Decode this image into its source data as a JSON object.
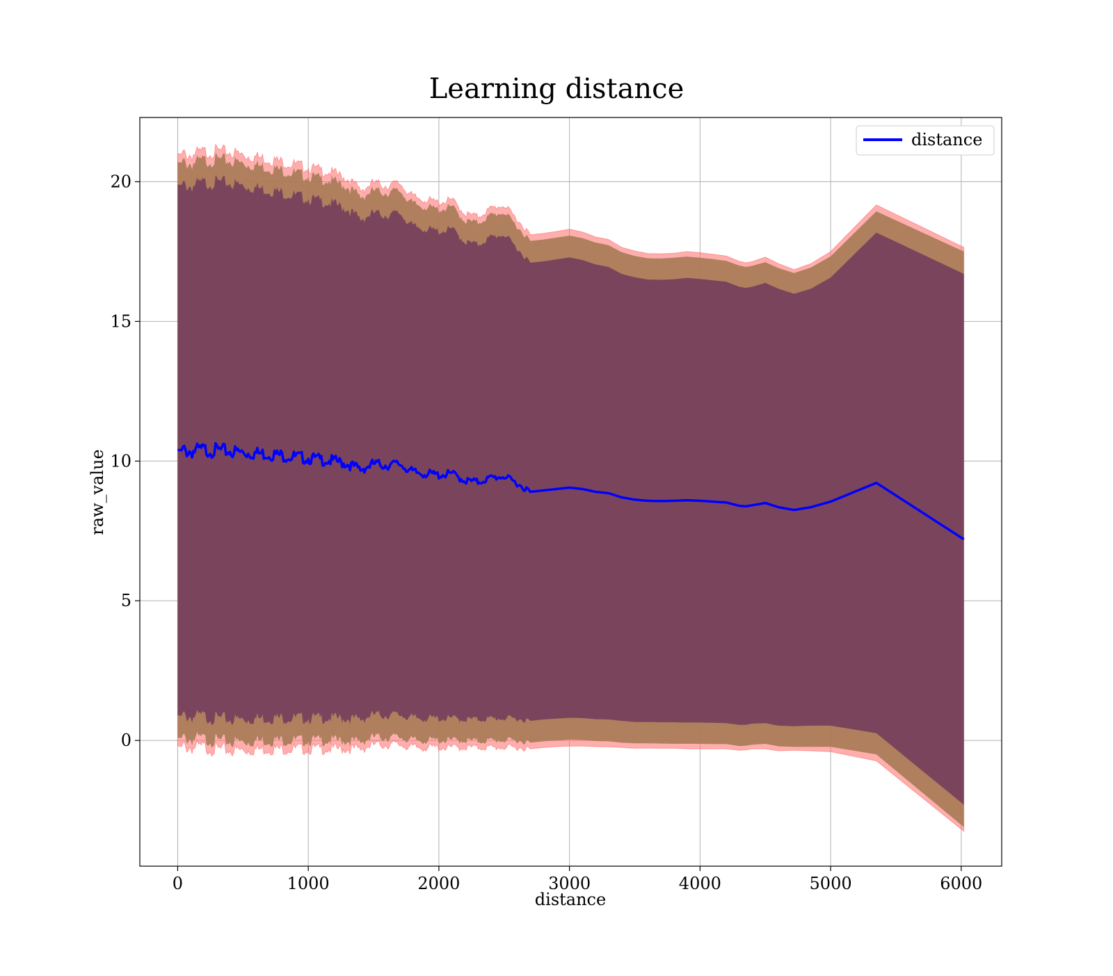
{
  "chart_data": {
    "type": "line",
    "title": "Learning distance",
    "xlabel": "distance",
    "ylabel": "raw_value",
    "xlim": [
      -290,
      6310
    ],
    "ylim": [
      -4.5,
      22.3
    ],
    "xticks": [
      0,
      1000,
      2000,
      3000,
      4000,
      5000,
      6000
    ],
    "yticks": [
      0,
      5,
      10,
      15,
      20
    ],
    "grid": true,
    "legend": {
      "position": "top-right",
      "entries": [
        {
          "label": "distance",
          "color": "#0000ff"
        }
      ]
    },
    "colors": {
      "line": "#0000ff",
      "band_outer": "#ff6b6b",
      "band_mid": "#a77a55",
      "band_inner": "#77425c",
      "grid": "#b0b0b0"
    },
    "series": [
      {
        "name": "distance",
        "x": [
          0,
          100,
          200,
          300,
          400,
          500,
          600,
          700,
          800,
          900,
          1000,
          1100,
          1200,
          1300,
          1400,
          1500,
          1600,
          1700,
          1800,
          1900,
          2000,
          2100,
          2200,
          2300,
          2400,
          2500,
          2600,
          2700,
          2800,
          2900,
          3000,
          3100,
          3200,
          3300,
          3400,
          3500,
          3600,
          3700,
          3800,
          3900,
          4000,
          4100,
          4200,
          4300,
          4350,
          4400,
          4500,
          4600,
          4720,
          4850,
          5000,
          5350,
          6020
        ],
        "y": [
          10.4,
          10.35,
          10.4,
          10.38,
          10.35,
          10.3,
          10.28,
          10.25,
          10.2,
          10.15,
          10.1,
          10.05,
          10.0,
          9.9,
          9.7,
          9.9,
          9.85,
          9.9,
          9.6,
          9.55,
          9.5,
          9.55,
          9.3,
          9.25,
          9.4,
          9.45,
          9.2,
          8.9,
          8.95,
          9.0,
          9.05,
          9.0,
          8.9,
          8.85,
          8.7,
          8.62,
          8.58,
          8.57,
          8.58,
          8.6,
          8.58,
          8.55,
          8.52,
          8.4,
          8.38,
          8.42,
          8.5,
          8.35,
          8.25,
          8.35,
          8.55,
          9.22,
          7.2
        ],
        "band_outer": [
          10.6,
          10.6,
          10.65,
          10.7,
          10.7,
          10.65,
          10.6,
          10.55,
          10.5,
          10.45,
          10.4,
          10.35,
          10.3,
          10.2,
          10.0,
          10.05,
          10.0,
          10.05,
          9.85,
          9.8,
          9.75,
          9.8,
          9.55,
          9.5,
          9.65,
          9.7,
          9.45,
          9.2,
          9.2,
          9.22,
          9.25,
          9.2,
          9.12,
          9.08,
          8.95,
          8.9,
          8.85,
          8.85,
          8.86,
          8.9,
          8.88,
          8.85,
          8.82,
          8.75,
          8.72,
          8.72,
          8.8,
          8.72,
          8.6,
          8.72,
          8.95,
          9.95,
          10.45
        ],
        "band_mid": [
          10.3,
          10.3,
          10.35,
          10.4,
          10.4,
          10.35,
          10.3,
          10.25,
          10.2,
          10.15,
          10.1,
          10.05,
          10.0,
          9.92,
          9.75,
          9.78,
          9.75,
          9.78,
          9.6,
          9.55,
          9.5,
          9.55,
          9.3,
          9.28,
          9.4,
          9.45,
          9.2,
          8.98,
          8.98,
          9.0,
          9.02,
          8.98,
          8.92,
          8.88,
          8.78,
          8.72,
          8.68,
          8.68,
          8.7,
          8.72,
          8.7,
          8.68,
          8.65,
          8.6,
          8.57,
          8.57,
          8.62,
          8.56,
          8.48,
          8.58,
          8.78,
          9.72,
          10.3
        ],
        "band_inner": [
          9.5,
          9.5,
          9.55,
          9.6,
          9.6,
          9.55,
          9.5,
          9.45,
          9.4,
          9.35,
          9.3,
          9.25,
          9.2,
          9.12,
          8.95,
          8.98,
          8.95,
          8.98,
          8.8,
          8.76,
          8.72,
          8.76,
          8.55,
          8.5,
          8.62,
          8.66,
          8.42,
          8.2,
          8.2,
          8.22,
          8.24,
          8.2,
          8.14,
          8.1,
          8.0,
          7.96,
          7.92,
          7.92,
          7.93,
          7.96,
          7.94,
          7.92,
          7.9,
          7.84,
          7.82,
          7.82,
          7.88,
          7.82,
          7.74,
          7.82,
          8.02,
          8.96,
          9.5
        ]
      }
    ]
  }
}
